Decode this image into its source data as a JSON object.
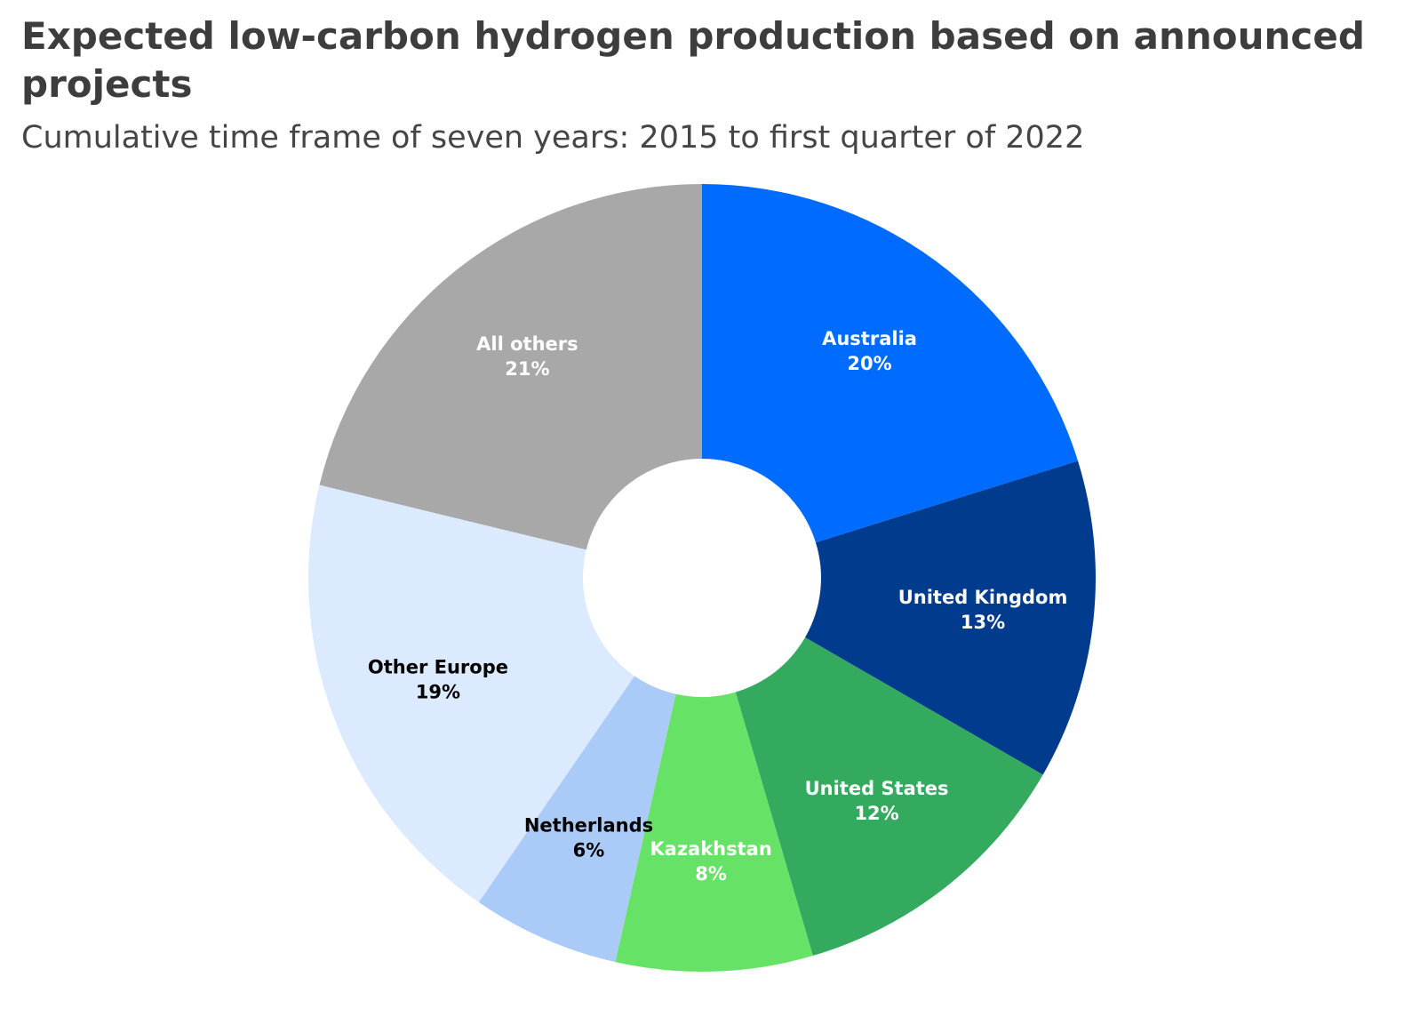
{
  "chart_data": {
    "type": "pie",
    "donut": true,
    "title": "Expected low-carbon hydrogen production based on announced projects",
    "subtitle": "Cumulative time frame of seven years: 2015 to first quarter of 2022",
    "unit": "%",
    "slices": [
      {
        "label": "Australia",
        "value": 20,
        "display": "20%",
        "color": "#006cff",
        "text_color": "#ffffff"
      },
      {
        "label": "United Kingdom",
        "value": 13,
        "display": "13%",
        "color": "#003b8e",
        "text_color": "#ffffff"
      },
      {
        "label": "United States",
        "value": 12,
        "display": "12%",
        "color": "#34aa5f",
        "text_color": "#ffffff"
      },
      {
        "label": "Kazakhstan",
        "value": 8,
        "display": "8%",
        "color": "#66e366",
        "text_color": "#ffffff"
      },
      {
        "label": "Netherlands",
        "value": 6,
        "display": "6%",
        "color": "#aacbf8",
        "text_color": "#000000"
      },
      {
        "label": "Other Europe",
        "value": 19,
        "display": "19%",
        "color": "#dceaff",
        "text_color": "#000000"
      },
      {
        "label": "All others",
        "value": 21,
        "display": "21%",
        "color": "#a8a8a8",
        "text_color": "#ffffff"
      }
    ]
  }
}
